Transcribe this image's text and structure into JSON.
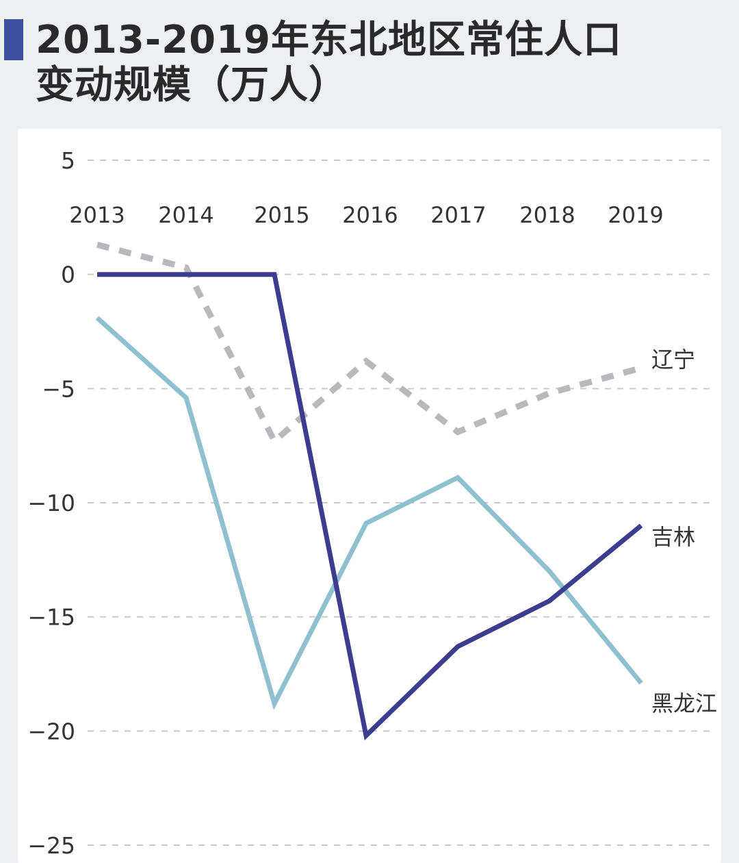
{
  "title_line1": "2013-2019年东北地区常住人口",
  "title_line2": "变动规模（万人）",
  "colors": {
    "jilin": "#3d3d8f",
    "heilongjiang": "#8fc0d0",
    "liaoning": "#b8b8bd",
    "accent": "#3f4fa0"
  },
  "chart_data": {
    "type": "line",
    "title": "2013-2019年东北地区常住人口变动规模（万人）",
    "x": [
      "2013",
      "2014",
      "2015",
      "2016",
      "2017",
      "2018",
      "2019"
    ],
    "ylim": [
      -25,
      5
    ],
    "yticks": [
      5,
      0,
      -5,
      -10,
      -15,
      -20,
      -25
    ],
    "ytick_labels": [
      "5",
      "0",
      "−5",
      "−10",
      "−15",
      "−20",
      "−25"
    ],
    "grid": true,
    "legend": "inline-right",
    "series": [
      {
        "name": "辽宁",
        "style": "dashed",
        "values": [
          1.3,
          0.3,
          -7.3,
          -3.8,
          -6.9,
          -5.2,
          -4.1
        ]
      },
      {
        "name": "吉林",
        "style": "solid",
        "values": [
          0,
          0,
          0,
          -20.2,
          -16.3,
          -14.3,
          -11.0
        ]
      },
      {
        "name": "黑龙江",
        "style": "solid",
        "values": [
          -1.9,
          -5.4,
          -18.8,
          -10.9,
          -8.9,
          -13.0,
          -17.9
        ]
      }
    ]
  }
}
